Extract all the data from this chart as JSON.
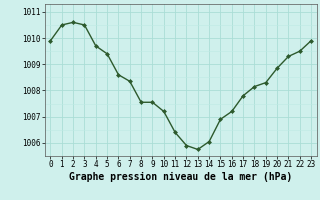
{
  "x": [
    0,
    1,
    2,
    3,
    4,
    5,
    6,
    7,
    8,
    9,
    10,
    11,
    12,
    13,
    14,
    15,
    16,
    17,
    18,
    19,
    20,
    21,
    22,
    23
  ],
  "y": [
    1009.9,
    1010.5,
    1010.6,
    1010.5,
    1009.7,
    1009.4,
    1008.6,
    1008.35,
    1007.55,
    1007.55,
    1007.2,
    1006.4,
    1005.9,
    1005.75,
    1006.05,
    1006.9,
    1007.2,
    1007.8,
    1008.15,
    1008.3,
    1008.85,
    1009.3,
    1009.5,
    1009.9
  ],
  "line_color": "#2d5a2d",
  "marker": "D",
  "marker_size": 2.0,
  "bg_color": "#cff0ec",
  "grid_major_color": "#aaddd6",
  "grid_minor_color": "#beeae4",
  "xlabel": "Graphe pression niveau de la mer (hPa)",
  "xlabel_fontsize": 7,
  "ylim": [
    1005.5,
    1011.3
  ],
  "yticks": [
    1006,
    1007,
    1008,
    1009,
    1010,
    1011
  ],
  "xticks": [
    0,
    1,
    2,
    3,
    4,
    5,
    6,
    7,
    8,
    9,
    10,
    11,
    12,
    13,
    14,
    15,
    16,
    17,
    18,
    19,
    20,
    21,
    22,
    23
  ],
  "tick_fontsize": 5.5,
  "line_width": 1.0
}
